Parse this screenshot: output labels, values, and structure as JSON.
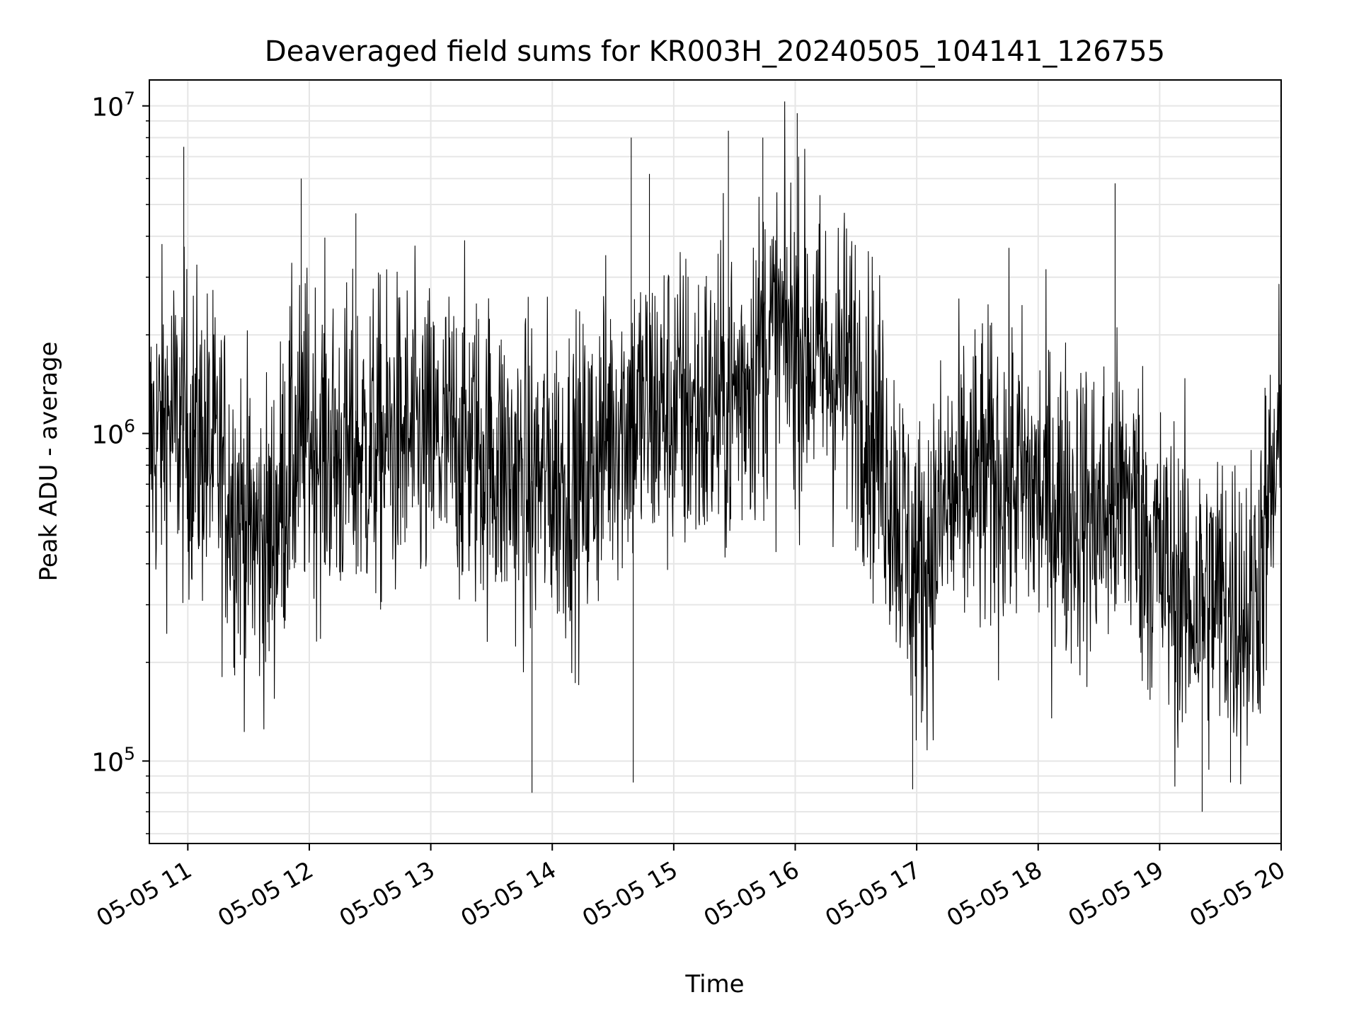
{
  "chart_data": {
    "type": "line",
    "title": "Deaveraged field sums for KR003H_20240505_104141_126755",
    "xlabel": "Time",
    "ylabel": "Peak ADU - average",
    "yscale": "log",
    "ylim": [
      56000,
      12000000
    ],
    "xlim": [
      "2024-05-05 10:41",
      "2024-05-05 20:00"
    ],
    "grid": true,
    "line_color": "#000000",
    "grid_color": "#e6e6e6",
    "x_ticks": [
      {
        "label": "05-05 11",
        "t": "2024-05-05 11:00"
      },
      {
        "label": "05-05 12",
        "t": "2024-05-05 12:00"
      },
      {
        "label": "05-05 13",
        "t": "2024-05-05 13:00"
      },
      {
        "label": "05-05 14",
        "t": "2024-05-05 14:00"
      },
      {
        "label": "05-05 15",
        "t": "2024-05-05 15:00"
      },
      {
        "label": "05-05 16",
        "t": "2024-05-05 16:00"
      },
      {
        "label": "05-05 17",
        "t": "2024-05-05 17:00"
      },
      {
        "label": "05-05 18",
        "t": "2024-05-05 18:00"
      },
      {
        "label": "05-05 19",
        "t": "2024-05-05 19:00"
      },
      {
        "label": "05-05 20",
        "t": "2024-05-05 20:00"
      }
    ],
    "y_ticks": [
      {
        "base": "10",
        "exp": "5",
        "value": 100000
      },
      {
        "base": "10",
        "exp": "6",
        "value": 1000000
      },
      {
        "base": "10",
        "exp": "7",
        "value": 10000000
      }
    ],
    "series": [
      {
        "x": [
          "2024-05-05 10:41",
          "2024-05-05 10:50",
          "2024-05-05 11:00",
          "2024-05-05 11:10",
          "2024-05-05 11:20",
          "2024-05-05 11:30",
          "2024-05-05 11:40",
          "2024-05-05 11:50",
          "2024-05-05 12:00",
          "2024-05-05 12:15",
          "2024-05-05 12:30",
          "2024-05-05 12:45",
          "2024-05-05 13:00",
          "2024-05-05 13:15",
          "2024-05-05 13:30",
          "2024-05-05 13:45",
          "2024-05-05 14:00",
          "2024-05-05 14:15",
          "2024-05-05 14:30",
          "2024-05-05 14:45",
          "2024-05-05 15:00",
          "2024-05-05 15:15",
          "2024-05-05 15:30",
          "2024-05-05 15:45",
          "2024-05-05 16:00",
          "2024-05-05 16:15",
          "2024-05-05 16:30",
          "2024-05-05 16:45",
          "2024-05-05 17:00",
          "2024-05-05 17:15",
          "2024-05-05 17:30",
          "2024-05-05 17:45",
          "2024-05-05 18:00",
          "2024-05-05 18:15",
          "2024-05-05 18:30",
          "2024-05-05 18:45",
          "2024-05-05 19:00",
          "2024-05-05 19:15",
          "2024-05-05 19:30",
          "2024-05-05 19:45",
          "2024-05-05 20:00"
        ],
        "y": [
          900000,
          1100000,
          1000000,
          900000,
          700000,
          500000,
          450000,
          800000,
          1000000,
          850000,
          900000,
          950000,
          900000,
          950000,
          850000,
          700000,
          750000,
          700000,
          1100000,
          1150000,
          1200000,
          1150000,
          1300000,
          1900000,
          2000000,
          1600000,
          1500000,
          800000,
          350000,
          600000,
          700000,
          750000,
          650000,
          600000,
          550000,
          650000,
          400000,
          300000,
          320000,
          280000,
          900000
        ],
        "noise_decades": 0.25,
        "spike_up": [
          {
            "t": "2024-05-05 10:58",
            "y": 7500000
          },
          {
            "t": "2024-05-05 11:56",
            "y": 6000000
          },
          {
            "t": "2024-05-05 12:23",
            "y": 4700000
          },
          {
            "t": "2024-05-05 14:39",
            "y": 8000000
          },
          {
            "t": "2024-05-05 14:48",
            "y": 6200000
          },
          {
            "t": "2024-05-05 15:27",
            "y": 8400000
          },
          {
            "t": "2024-05-05 15:44",
            "y": 8000000
          },
          {
            "t": "2024-05-05 16:01",
            "y": 9500000
          },
          {
            "t": "2024-05-05 18:38",
            "y": 5800000
          }
        ],
        "spike_down": [
          {
            "t": "2024-05-05 13:50",
            "y": 80000
          },
          {
            "t": "2024-05-05 14:40",
            "y": 86000
          },
          {
            "t": "2024-05-05 16:58",
            "y": 82000
          },
          {
            "t": "2024-05-05 19:21",
            "y": 70000
          },
          {
            "t": "2024-05-05 19:35",
            "y": 86000
          }
        ]
      }
    ]
  }
}
